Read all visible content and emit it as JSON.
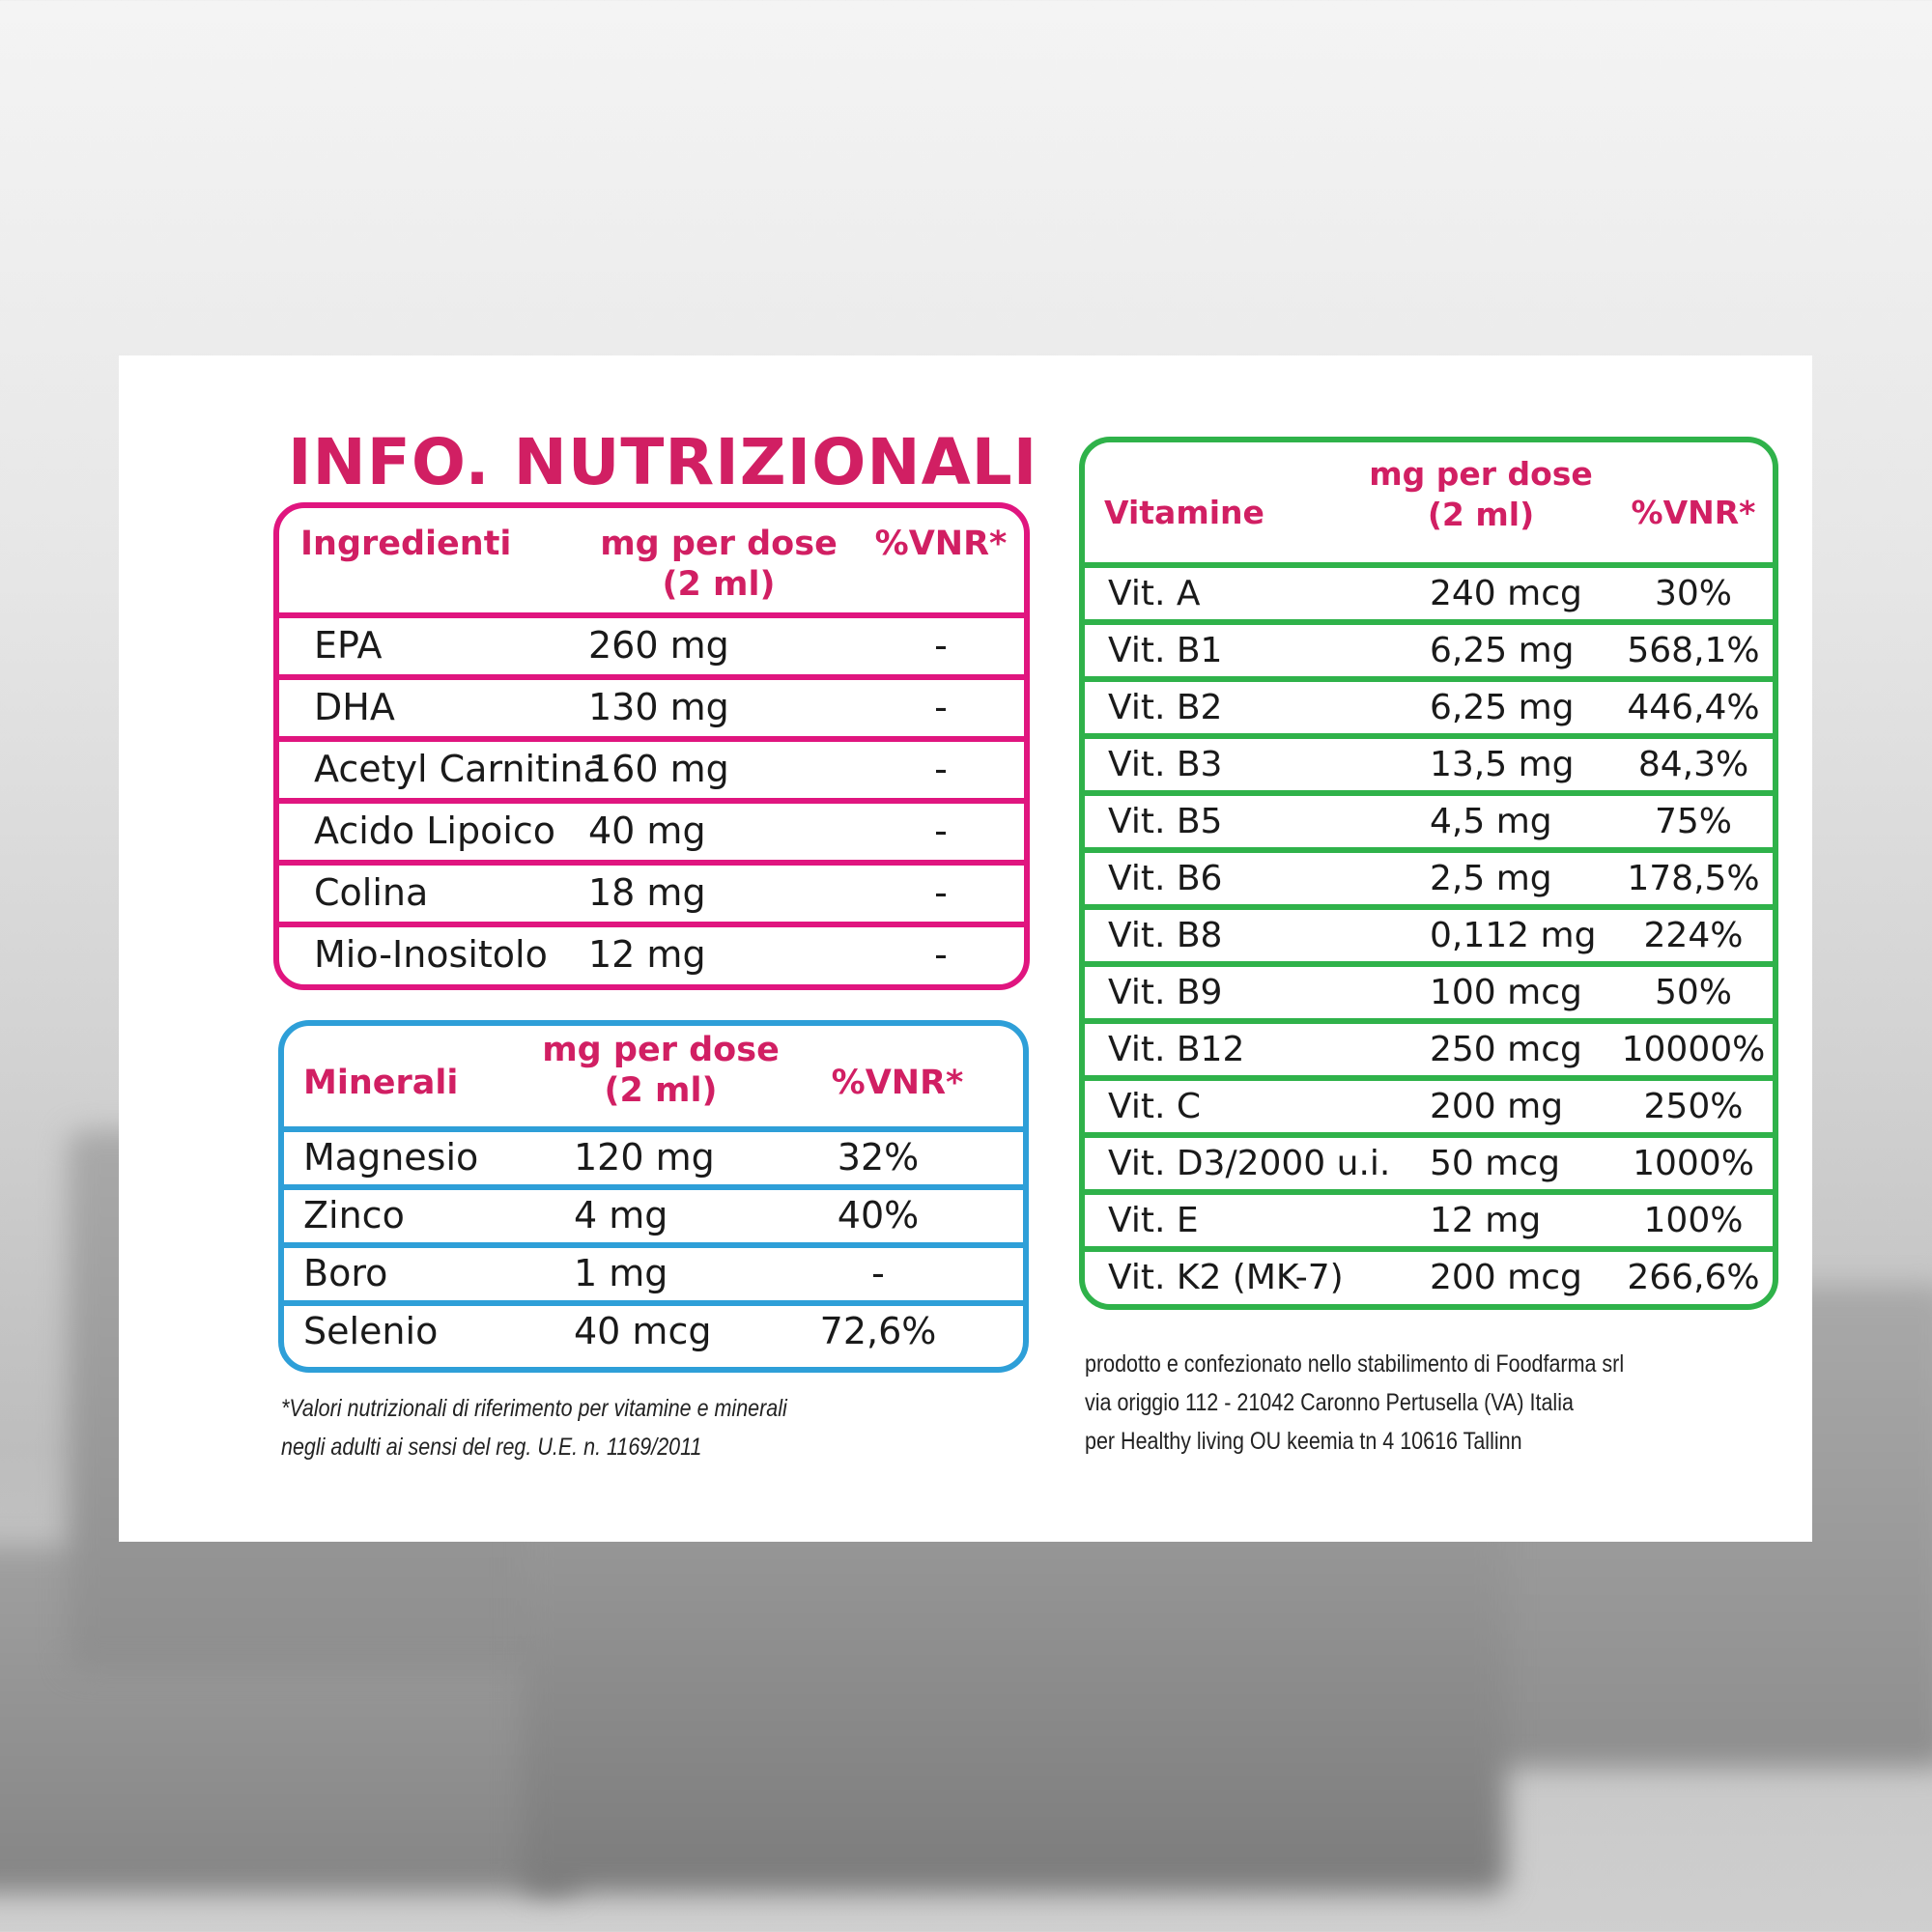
{
  "title": "INFO. NUTRIZIONALI",
  "colors": {
    "pink": "#e0157f",
    "blue": "#2e9fd8",
    "green": "#2fb24a",
    "title": "#d11f63"
  },
  "ingredienti": {
    "headers": [
      "Ingredienti",
      "mg per dose",
      "(2 ml)",
      "%VNR*"
    ],
    "rows": [
      [
        "EPA",
        "260 mg",
        "-"
      ],
      [
        "DHA",
        "130 mg",
        "-"
      ],
      [
        "Acetyl Carnitina",
        "160 mg",
        "-"
      ],
      [
        "Acido Lipoico",
        "40 mg",
        "-"
      ],
      [
        "Colina",
        "18 mg",
        "-"
      ],
      [
        "Mio-Inositolo",
        "12 mg",
        "-"
      ]
    ]
  },
  "minerali": {
    "headers": [
      "Minerali",
      "mg per dose",
      "(2 ml)",
      "%VNR*"
    ],
    "rows": [
      [
        "Magnesio",
        "120 mg",
        "32%"
      ],
      [
        "Zinco",
        "4 mg",
        "40%"
      ],
      [
        "Boro",
        "1 mg",
        "-"
      ],
      [
        "Selenio",
        "40 mcg",
        "72,6%"
      ]
    ]
  },
  "vitamine": {
    "headers": [
      "Vitamine",
      "mg per dose",
      "(2 ml)",
      "%VNR*"
    ],
    "rows": [
      [
        "Vit. A",
        "240 mcg",
        "30%"
      ],
      [
        "Vit. B1",
        "6,25 mg",
        "568,1%"
      ],
      [
        "Vit. B2",
        "6,25 mg",
        "446,4%"
      ],
      [
        "Vit. B3",
        "13,5 mg",
        "84,3%"
      ],
      [
        "Vit. B5",
        "4,5 mg",
        "75%"
      ],
      [
        "Vit. B6",
        "2,5 mg",
        "178,5%"
      ],
      [
        "Vit. B8",
        "0,112 mg",
        "224%"
      ],
      [
        "Vit. B9",
        "100 mcg",
        "50%"
      ],
      [
        "Vit. B12",
        "250 mcg",
        "10000%"
      ],
      [
        "Vit.  C",
        "200 mg",
        "250%"
      ],
      [
        "Vit.  D3/2000 u.i.",
        "50 mcg",
        "1000%"
      ],
      [
        "Vit.  E",
        "12 mg",
        "100%"
      ],
      [
        "Vit.  K2 (MK-7)",
        "200 mcg",
        "266,6%"
      ]
    ]
  },
  "footnote": [
    "*Valori nutrizionali di riferimento per vitamine e minerali",
    "negli adulti ai sensi del reg. U.E. n. 1169/2011"
  ],
  "producer": [
    "prodotto e confezionato nello stabilimento di Foodfarma srl",
    "via origgio 112 - 21042 Caronno Pertusella (VA) Italia",
    "per Healthy living OU keemia tn 4 10616 Tallinn"
  ]
}
